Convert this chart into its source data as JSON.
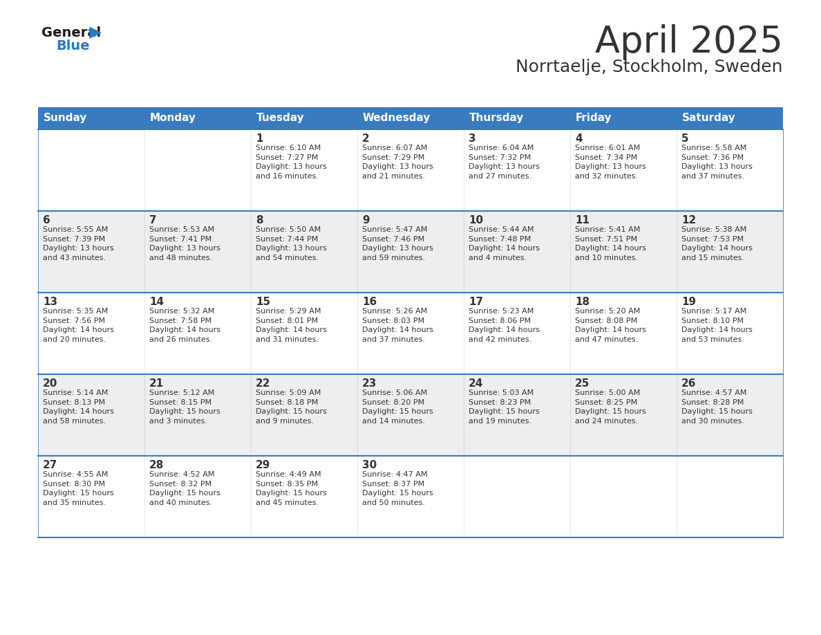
{
  "title": "April 2025",
  "subtitle": "Norrtaelje, Stockholm, Sweden",
  "header_color": "#3a7abf",
  "header_text_color": "#ffffff",
  "day_names": [
    "Sunday",
    "Monday",
    "Tuesday",
    "Wednesday",
    "Thursday",
    "Friday",
    "Saturday"
  ],
  "weeks": [
    [
      {
        "day": "",
        "info": ""
      },
      {
        "day": "",
        "info": ""
      },
      {
        "day": "1",
        "info": "Sunrise: 6:10 AM\nSunset: 7:27 PM\nDaylight: 13 hours\nand 16 minutes."
      },
      {
        "day": "2",
        "info": "Sunrise: 6:07 AM\nSunset: 7:29 PM\nDaylight: 13 hours\nand 21 minutes."
      },
      {
        "day": "3",
        "info": "Sunrise: 6:04 AM\nSunset: 7:32 PM\nDaylight: 13 hours\nand 27 minutes."
      },
      {
        "day": "4",
        "info": "Sunrise: 6:01 AM\nSunset: 7:34 PM\nDaylight: 13 hours\nand 32 minutes."
      },
      {
        "day": "5",
        "info": "Sunrise: 5:58 AM\nSunset: 7:36 PM\nDaylight: 13 hours\nand 37 minutes."
      }
    ],
    [
      {
        "day": "6",
        "info": "Sunrise: 5:55 AM\nSunset: 7:39 PM\nDaylight: 13 hours\nand 43 minutes."
      },
      {
        "day": "7",
        "info": "Sunrise: 5:53 AM\nSunset: 7:41 PM\nDaylight: 13 hours\nand 48 minutes."
      },
      {
        "day": "8",
        "info": "Sunrise: 5:50 AM\nSunset: 7:44 PM\nDaylight: 13 hours\nand 54 minutes."
      },
      {
        "day": "9",
        "info": "Sunrise: 5:47 AM\nSunset: 7:46 PM\nDaylight: 13 hours\nand 59 minutes."
      },
      {
        "day": "10",
        "info": "Sunrise: 5:44 AM\nSunset: 7:48 PM\nDaylight: 14 hours\nand 4 minutes."
      },
      {
        "day": "11",
        "info": "Sunrise: 5:41 AM\nSunset: 7:51 PM\nDaylight: 14 hours\nand 10 minutes."
      },
      {
        "day": "12",
        "info": "Sunrise: 5:38 AM\nSunset: 7:53 PM\nDaylight: 14 hours\nand 15 minutes."
      }
    ],
    [
      {
        "day": "13",
        "info": "Sunrise: 5:35 AM\nSunset: 7:56 PM\nDaylight: 14 hours\nand 20 minutes."
      },
      {
        "day": "14",
        "info": "Sunrise: 5:32 AM\nSunset: 7:58 PM\nDaylight: 14 hours\nand 26 minutes."
      },
      {
        "day": "15",
        "info": "Sunrise: 5:29 AM\nSunset: 8:01 PM\nDaylight: 14 hours\nand 31 minutes."
      },
      {
        "day": "16",
        "info": "Sunrise: 5:26 AM\nSunset: 8:03 PM\nDaylight: 14 hours\nand 37 minutes."
      },
      {
        "day": "17",
        "info": "Sunrise: 5:23 AM\nSunset: 8:06 PM\nDaylight: 14 hours\nand 42 minutes."
      },
      {
        "day": "18",
        "info": "Sunrise: 5:20 AM\nSunset: 8:08 PM\nDaylight: 14 hours\nand 47 minutes."
      },
      {
        "day": "19",
        "info": "Sunrise: 5:17 AM\nSunset: 8:10 PM\nDaylight: 14 hours\nand 53 minutes."
      }
    ],
    [
      {
        "day": "20",
        "info": "Sunrise: 5:14 AM\nSunset: 8:13 PM\nDaylight: 14 hours\nand 58 minutes."
      },
      {
        "day": "21",
        "info": "Sunrise: 5:12 AM\nSunset: 8:15 PM\nDaylight: 15 hours\nand 3 minutes."
      },
      {
        "day": "22",
        "info": "Sunrise: 5:09 AM\nSunset: 8:18 PM\nDaylight: 15 hours\nand 9 minutes."
      },
      {
        "day": "23",
        "info": "Sunrise: 5:06 AM\nSunset: 8:20 PM\nDaylight: 15 hours\nand 14 minutes."
      },
      {
        "day": "24",
        "info": "Sunrise: 5:03 AM\nSunset: 8:23 PM\nDaylight: 15 hours\nand 19 minutes."
      },
      {
        "day": "25",
        "info": "Sunrise: 5:00 AM\nSunset: 8:25 PM\nDaylight: 15 hours\nand 24 minutes."
      },
      {
        "day": "26",
        "info": "Sunrise: 4:57 AM\nSunset: 8:28 PM\nDaylight: 15 hours\nand 30 minutes."
      }
    ],
    [
      {
        "day": "27",
        "info": "Sunrise: 4:55 AM\nSunset: 8:30 PM\nDaylight: 15 hours\nand 35 minutes."
      },
      {
        "day": "28",
        "info": "Sunrise: 4:52 AM\nSunset: 8:32 PM\nDaylight: 15 hours\nand 40 minutes."
      },
      {
        "day": "29",
        "info": "Sunrise: 4:49 AM\nSunset: 8:35 PM\nDaylight: 15 hours\nand 45 minutes."
      },
      {
        "day": "30",
        "info": "Sunrise: 4:47 AM\nSunset: 8:37 PM\nDaylight: 15 hours\nand 50 minutes."
      },
      {
        "day": "",
        "info": ""
      },
      {
        "day": "",
        "info": ""
      },
      {
        "day": "",
        "info": ""
      }
    ]
  ],
  "bg_color": "#ffffff",
  "cell_bg_white": "#ffffff",
  "cell_bg_gray": "#eeeeee",
  "cell_border_color": "#3a7abf",
  "text_color": "#333333",
  "logo_general_color": "#1a1a1a",
  "logo_blue_color": "#2a7abf",
  "title_fontsize": 38,
  "subtitle_fontsize": 18,
  "header_fontsize": 11,
  "day_num_fontsize": 11,
  "info_fontsize": 8
}
